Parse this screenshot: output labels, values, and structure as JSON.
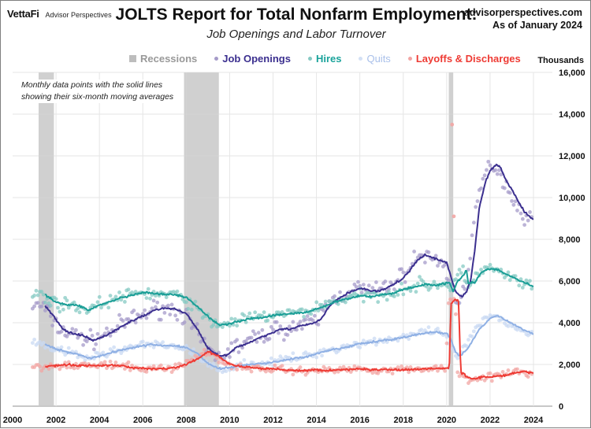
{
  "header": {
    "brand": "VettaFi",
    "brand_sub": "Advisor Perspectives",
    "site": "advisorperspectives.com",
    "as_of": "As of January 2024"
  },
  "chart_data": {
    "type": "line",
    "title": "JOLTS Report for Total Nonfarm Employment:",
    "subtitle": "Job Openings and Labor Turnover",
    "ylabel": "Thousands",
    "xlabel": "",
    "note_line1": "Monthly data points with the solid lines",
    "note_line2": "showing their six-month moving averages",
    "xlim": [
      2000,
      2025
    ],
    "ylim": [
      0,
      16000
    ],
    "xticks": [
      "2000",
      "2002",
      "2004",
      "2006",
      "2008",
      "2010",
      "2012",
      "2014",
      "2016",
      "2018",
      "2020",
      "2022",
      "2024"
    ],
    "yticks": [
      "0",
      "2,000",
      "4,000",
      "6,000",
      "8,000",
      "10,000",
      "12,000",
      "14,000",
      "16,000"
    ],
    "grid": true,
    "legend_position": "top",
    "recessions": [
      {
        "start": 2001.2,
        "end": 2001.9
      },
      {
        "start": 2007.9,
        "end": 2009.5
      },
      {
        "start": 2020.1,
        "end": 2020.3
      }
    ],
    "series": [
      {
        "name": "Job Openings",
        "color": "#3b2f8f",
        "dot_color": "#a69bc9",
        "moving_average": [
          [
            2001.5,
            4800
          ],
          [
            2001.9,
            4300
          ],
          [
            2002.3,
            3700
          ],
          [
            2002.8,
            3450
          ],
          [
            2003.2,
            3400
          ],
          [
            2003.7,
            3150
          ],
          [
            2004.0,
            3250
          ],
          [
            2004.5,
            3500
          ],
          [
            2005.0,
            3800
          ],
          [
            2005.5,
            4100
          ],
          [
            2006.0,
            4300
          ],
          [
            2006.5,
            4600
          ],
          [
            2007.0,
            4700
          ],
          [
            2007.5,
            4650
          ],
          [
            2008.0,
            4450
          ],
          [
            2008.5,
            3700
          ],
          [
            2009.0,
            2800
          ],
          [
            2009.5,
            2400
          ],
          [
            2009.9,
            2450
          ],
          [
            2010.3,
            2800
          ],
          [
            2010.8,
            3000
          ],
          [
            2011.3,
            3250
          ],
          [
            2011.8,
            3450
          ],
          [
            2012.3,
            3700
          ],
          [
            2012.8,
            3700
          ],
          [
            2013.3,
            3850
          ],
          [
            2013.8,
            3950
          ],
          [
            2014.2,
            4150
          ],
          [
            2014.6,
            4800
          ],
          [
            2015.0,
            5150
          ],
          [
            2015.5,
            5450
          ],
          [
            2016.0,
            5650
          ],
          [
            2016.5,
            5550
          ],
          [
            2016.9,
            5500
          ],
          [
            2017.4,
            5750
          ],
          [
            2017.9,
            6050
          ],
          [
            2018.3,
            6500
          ],
          [
            2018.7,
            7050
          ],
          [
            2019.0,
            7250
          ],
          [
            2019.4,
            7100
          ],
          [
            2019.8,
            6950
          ],
          [
            2020.0,
            6900
          ],
          [
            2020.2,
            6200
          ],
          [
            2020.4,
            5500
          ],
          [
            2020.7,
            5250
          ],
          [
            2020.9,
            5450
          ],
          [
            2021.1,
            6000
          ],
          [
            2021.3,
            7500
          ],
          [
            2021.5,
            9500
          ],
          [
            2021.8,
            10800
          ],
          [
            2022.0,
            11300
          ],
          [
            2022.3,
            11600
          ],
          [
            2022.5,
            11400
          ],
          [
            2022.8,
            10700
          ],
          [
            2023.0,
            10400
          ],
          [
            2023.3,
            9800
          ],
          [
            2023.6,
            9300
          ],
          [
            2023.9,
            9000
          ],
          [
            2024.0,
            8950
          ]
        ],
        "monthly_noise": 320
      },
      {
        "name": "Hires",
        "color": "#1a9e96",
        "dot_color": "#86c9c3",
        "moving_average": [
          [
            2001.5,
            5350
          ],
          [
            2002.0,
            5000
          ],
          [
            2002.5,
            4850
          ],
          [
            2003.0,
            4850
          ],
          [
            2003.5,
            4600
          ],
          [
            2004.0,
            4850
          ],
          [
            2004.5,
            5000
          ],
          [
            2005.0,
            5200
          ],
          [
            2005.5,
            5300
          ],
          [
            2006.0,
            5450
          ],
          [
            2006.5,
            5400
          ],
          [
            2007.0,
            5350
          ],
          [
            2007.5,
            5350
          ],
          [
            2008.0,
            5200
          ],
          [
            2008.5,
            4800
          ],
          [
            2009.0,
            4300
          ],
          [
            2009.5,
            3900
          ],
          [
            2010.0,
            3950
          ],
          [
            2010.5,
            4100
          ],
          [
            2011.0,
            4200
          ],
          [
            2011.5,
            4250
          ],
          [
            2012.0,
            4350
          ],
          [
            2012.5,
            4400
          ],
          [
            2013.0,
            4450
          ],
          [
            2013.5,
            4500
          ],
          [
            2014.0,
            4650
          ],
          [
            2014.5,
            4850
          ],
          [
            2015.0,
            5050
          ],
          [
            2015.5,
            5150
          ],
          [
            2016.0,
            5300
          ],
          [
            2016.5,
            5250
          ],
          [
            2017.0,
            5350
          ],
          [
            2017.5,
            5400
          ],
          [
            2018.0,
            5600
          ],
          [
            2018.5,
            5700
          ],
          [
            2019.0,
            5850
          ],
          [
            2019.5,
            5800
          ],
          [
            2020.0,
            5900
          ],
          [
            2020.15,
            5900
          ],
          [
            2020.3,
            5500
          ],
          [
            2020.5,
            6000
          ],
          [
            2020.8,
            6300
          ],
          [
            2020.9,
            6600
          ],
          [
            2021.0,
            5900
          ],
          [
            2021.3,
            5950
          ],
          [
            2021.6,
            6400
          ],
          [
            2022.0,
            6600
          ],
          [
            2022.3,
            6550
          ],
          [
            2022.6,
            6400
          ],
          [
            2023.0,
            6200
          ],
          [
            2023.5,
            5950
          ],
          [
            2024.0,
            5750
          ]
        ],
        "monthly_noise": 220
      },
      {
        "name": "Quits",
        "color": "#8fb0e4",
        "dot_color": "#c9d9f3",
        "moving_average": [
          [
            2001.5,
            2950
          ],
          [
            2002.0,
            2750
          ],
          [
            2002.5,
            2600
          ],
          [
            2003.0,
            2500
          ],
          [
            2003.5,
            2300
          ],
          [
            2004.0,
            2400
          ],
          [
            2004.5,
            2550
          ],
          [
            2005.0,
            2700
          ],
          [
            2005.5,
            2800
          ],
          [
            2006.0,
            2900
          ],
          [
            2006.5,
            2950
          ],
          [
            2007.0,
            2900
          ],
          [
            2007.5,
            2900
          ],
          [
            2008.0,
            2800
          ],
          [
            2008.5,
            2550
          ],
          [
            2009.0,
            2050
          ],
          [
            2009.5,
            1800
          ],
          [
            2010.0,
            1850
          ],
          [
            2010.5,
            1950
          ],
          [
            2011.0,
            2000
          ],
          [
            2011.5,
            2050
          ],
          [
            2012.0,
            2100
          ],
          [
            2012.5,
            2200
          ],
          [
            2013.0,
            2300
          ],
          [
            2013.5,
            2350
          ],
          [
            2014.0,
            2500
          ],
          [
            2014.5,
            2650
          ],
          [
            2015.0,
            2750
          ],
          [
            2015.5,
            2850
          ],
          [
            2016.0,
            3000
          ],
          [
            2016.5,
            3050
          ],
          [
            2017.0,
            3150
          ],
          [
            2017.5,
            3200
          ],
          [
            2018.0,
            3300
          ],
          [
            2018.5,
            3400
          ],
          [
            2019.0,
            3500
          ],
          [
            2019.5,
            3550
          ],
          [
            2020.0,
            3500
          ],
          [
            2020.2,
            3200
          ],
          [
            2020.4,
            2600
          ],
          [
            2020.6,
            2400
          ],
          [
            2021.0,
            2800
          ],
          [
            2021.5,
            3700
          ],
          [
            2022.0,
            4200
          ],
          [
            2022.3,
            4350
          ],
          [
            2022.7,
            4150
          ],
          [
            2023.0,
            3950
          ],
          [
            2023.5,
            3700
          ],
          [
            2024.0,
            3450
          ]
        ],
        "monthly_noise": 150
      },
      {
        "name": "Layoffs & Discharges",
        "color": "#ee3b34",
        "dot_color": "#f2a5a3",
        "moving_average": [
          [
            2001.5,
            1900
          ],
          [
            2002.0,
            1950
          ],
          [
            2002.5,
            2000
          ],
          [
            2003.0,
            1950
          ],
          [
            2003.5,
            1950
          ],
          [
            2004.0,
            1950
          ],
          [
            2004.5,
            1950
          ],
          [
            2005.0,
            1950
          ],
          [
            2005.5,
            1850
          ],
          [
            2006.0,
            1800
          ],
          [
            2006.5,
            1800
          ],
          [
            2007.0,
            1800
          ],
          [
            2007.5,
            1850
          ],
          [
            2008.0,
            2000
          ],
          [
            2008.5,
            2250
          ],
          [
            2009.0,
            2600
          ],
          [
            2009.5,
            2400
          ],
          [
            2010.0,
            2000
          ],
          [
            2010.5,
            1900
          ],
          [
            2011.0,
            1850
          ],
          [
            2011.5,
            1800
          ],
          [
            2012.0,
            1800
          ],
          [
            2012.5,
            1750
          ],
          [
            2013.0,
            1700
          ],
          [
            2013.5,
            1700
          ],
          [
            2014.0,
            1750
          ],
          [
            2014.5,
            1700
          ],
          [
            2015.0,
            1750
          ],
          [
            2015.5,
            1750
          ],
          [
            2016.0,
            1800
          ],
          [
            2016.5,
            1750
          ],
          [
            2017.0,
            1750
          ],
          [
            2017.5,
            1750
          ],
          [
            2018.0,
            1750
          ],
          [
            2018.5,
            1750
          ],
          [
            2019.0,
            1800
          ],
          [
            2019.5,
            1800
          ],
          [
            2020.0,
            1800
          ],
          [
            2020.12,
            1900
          ],
          [
            2020.2,
            4900
          ],
          [
            2020.35,
            5100
          ],
          [
            2020.55,
            5050
          ],
          [
            2020.65,
            1600
          ],
          [
            2020.8,
            1550
          ],
          [
            2021.0,
            1350
          ],
          [
            2021.3,
            1300
          ],
          [
            2021.6,
            1400
          ],
          [
            2022.0,
            1400
          ],
          [
            2022.5,
            1450
          ],
          [
            2023.0,
            1550
          ],
          [
            2023.5,
            1650
          ],
          [
            2024.0,
            1600
          ]
        ],
        "monthly_noise": 140,
        "outliers": [
          [
            2020.25,
            13500
          ],
          [
            2020.33,
            9100
          ]
        ]
      }
    ],
    "recession_legend": {
      "name": "Recessions",
      "color": "#bdbdbd"
    }
  }
}
